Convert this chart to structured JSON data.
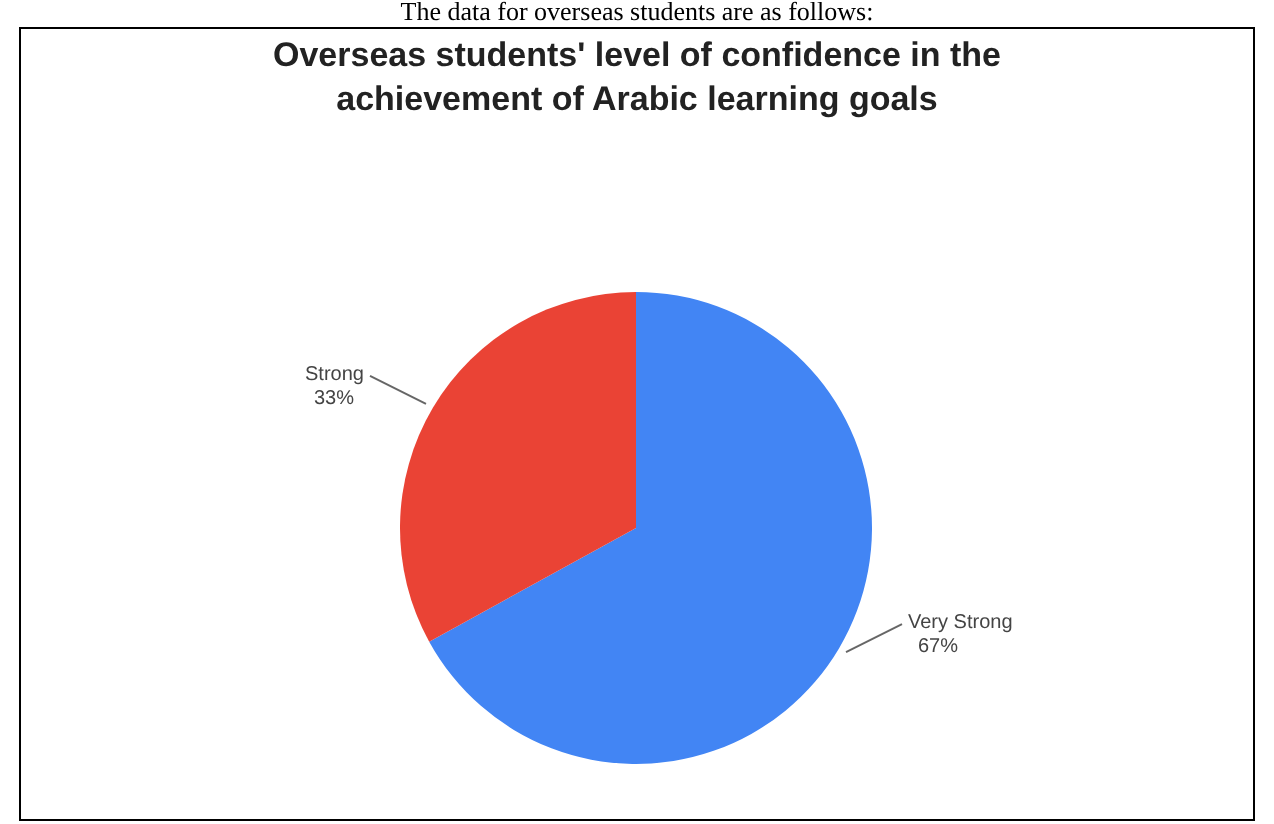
{
  "chart_data": {
    "type": "pie",
    "title": "Overseas students' level of confidence in the achievement of Arabic learning goals",
    "annotations": [
      "The data for overseas students are as follows:"
    ],
    "categories": [
      "Very Strong",
      "Strong"
    ],
    "values": [
      67,
      33
    ],
    "colors": [
      "#4285f4",
      "#ea4335"
    ],
    "value_labels": [
      "67%",
      "33%"
    ]
  }
}
